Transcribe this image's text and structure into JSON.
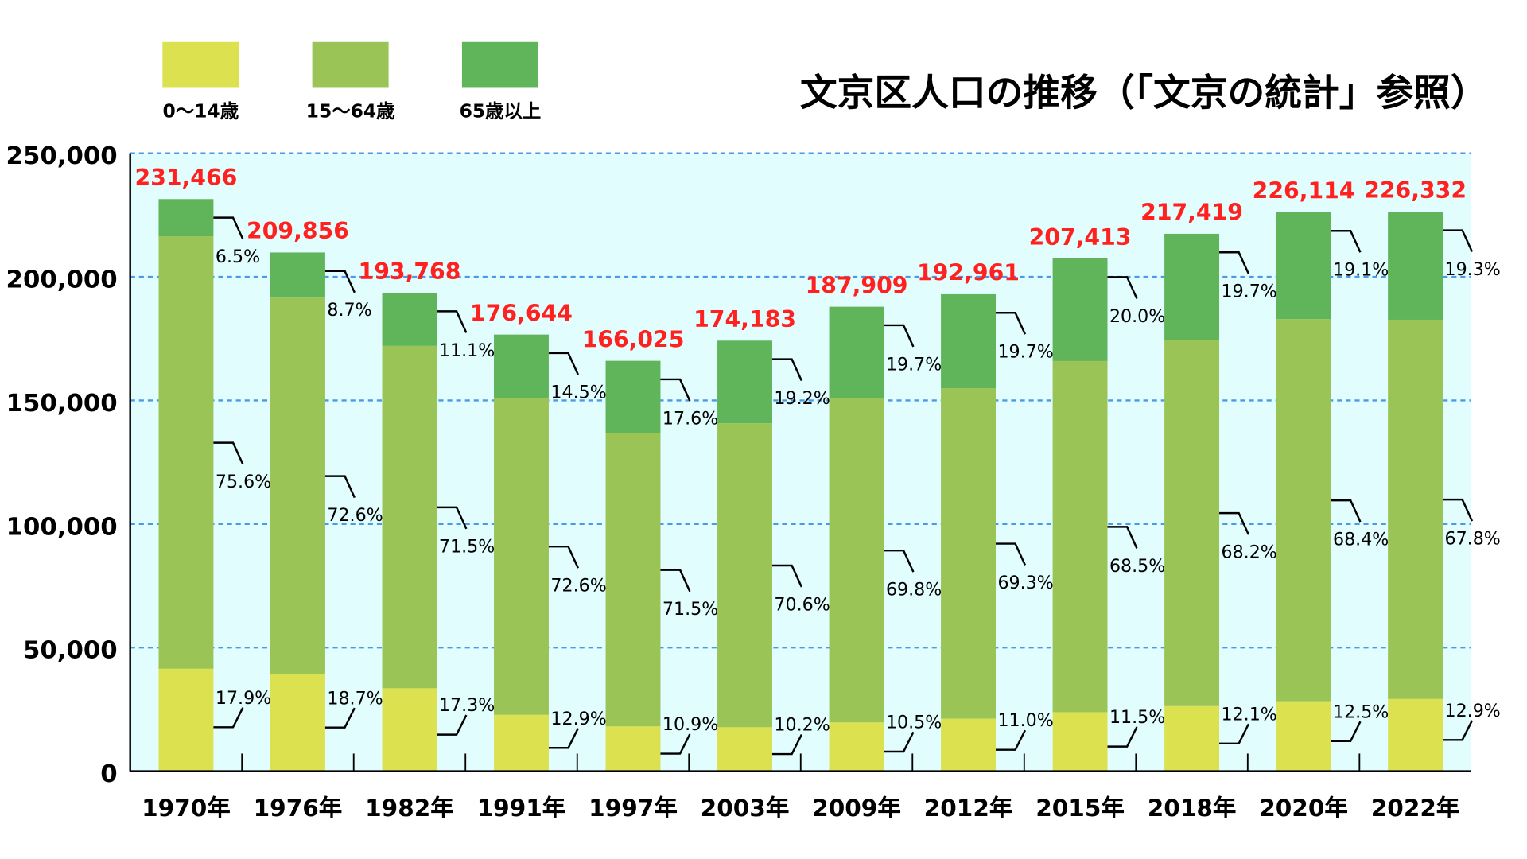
{
  "chart_data": {
    "type": "bar",
    "stacked": true,
    "title": "文京区人口の推移（「文京の統計」参照）",
    "categories": [
      "1970年",
      "1976年",
      "1982年",
      "1991年",
      "1997年",
      "2003年",
      "2009年",
      "2012年",
      "2015年",
      "2018年",
      "2020年",
      "2022年"
    ],
    "totals": [
      231466,
      209856,
      193768,
      176644,
      166025,
      174183,
      187909,
      192961,
      207413,
      217419,
      226114,
      226332
    ],
    "total_labels": [
      "231,466",
      "209,856",
      "193,768",
      "176,644",
      "166,025",
      "174,183",
      "187,909",
      "192,961",
      "207,413",
      "217,419",
      "226,114",
      "226,332"
    ],
    "series": [
      {
        "name": "0～14歳",
        "color": "#dce150",
        "percent": [
          17.9,
          18.7,
          17.3,
          12.9,
          10.9,
          10.2,
          10.5,
          11.0,
          11.5,
          12.1,
          12.5,
          12.9
        ],
        "labels": [
          "17.9%",
          "18.7%",
          "17.3%",
          "12.9%",
          "10.9%",
          "10.2%",
          "10.5%",
          "11.0%",
          "11.5%",
          "12.1%",
          "12.5%",
          "12.9%"
        ]
      },
      {
        "name": "15～64歳",
        "color": "#9bc456",
        "percent": [
          75.6,
          72.6,
          71.5,
          72.6,
          71.5,
          70.6,
          69.8,
          69.3,
          68.5,
          68.2,
          68.4,
          67.8
        ],
        "labels": [
          "75.6%",
          "72.6%",
          "71.5%",
          "72.6%",
          "71.5%",
          "70.6%",
          "69.8%",
          "69.3%",
          "68.5%",
          "68.2%",
          "68.4%",
          "67.8%"
        ]
      },
      {
        "name": "65歳以上",
        "color": "#60b45a",
        "percent": [
          6.5,
          8.7,
          11.1,
          14.5,
          17.6,
          19.2,
          19.7,
          19.7,
          20.0,
          19.7,
          19.1,
          19.3
        ],
        "labels": [
          "6.5%",
          "8.7%",
          "11.1%",
          "14.5%",
          "17.6%",
          "19.2%",
          "19.7%",
          "19.7%",
          "20.0%",
          "19.7%",
          "19.1%",
          "19.3%"
        ]
      }
    ],
    "ylim": [
      0,
      250000
    ],
    "yticks": [
      0,
      50000,
      100000,
      150000,
      200000,
      250000
    ],
    "ytick_labels": [
      "0",
      "50,000",
      "100,000",
      "150,000",
      "200,000",
      "250,000"
    ],
    "grid": true,
    "legend": "top-left",
    "colors": {
      "total_label": "#ff2020",
      "grid": "#4a9ae8",
      "plot_bg": "#e2fdfd"
    }
  }
}
